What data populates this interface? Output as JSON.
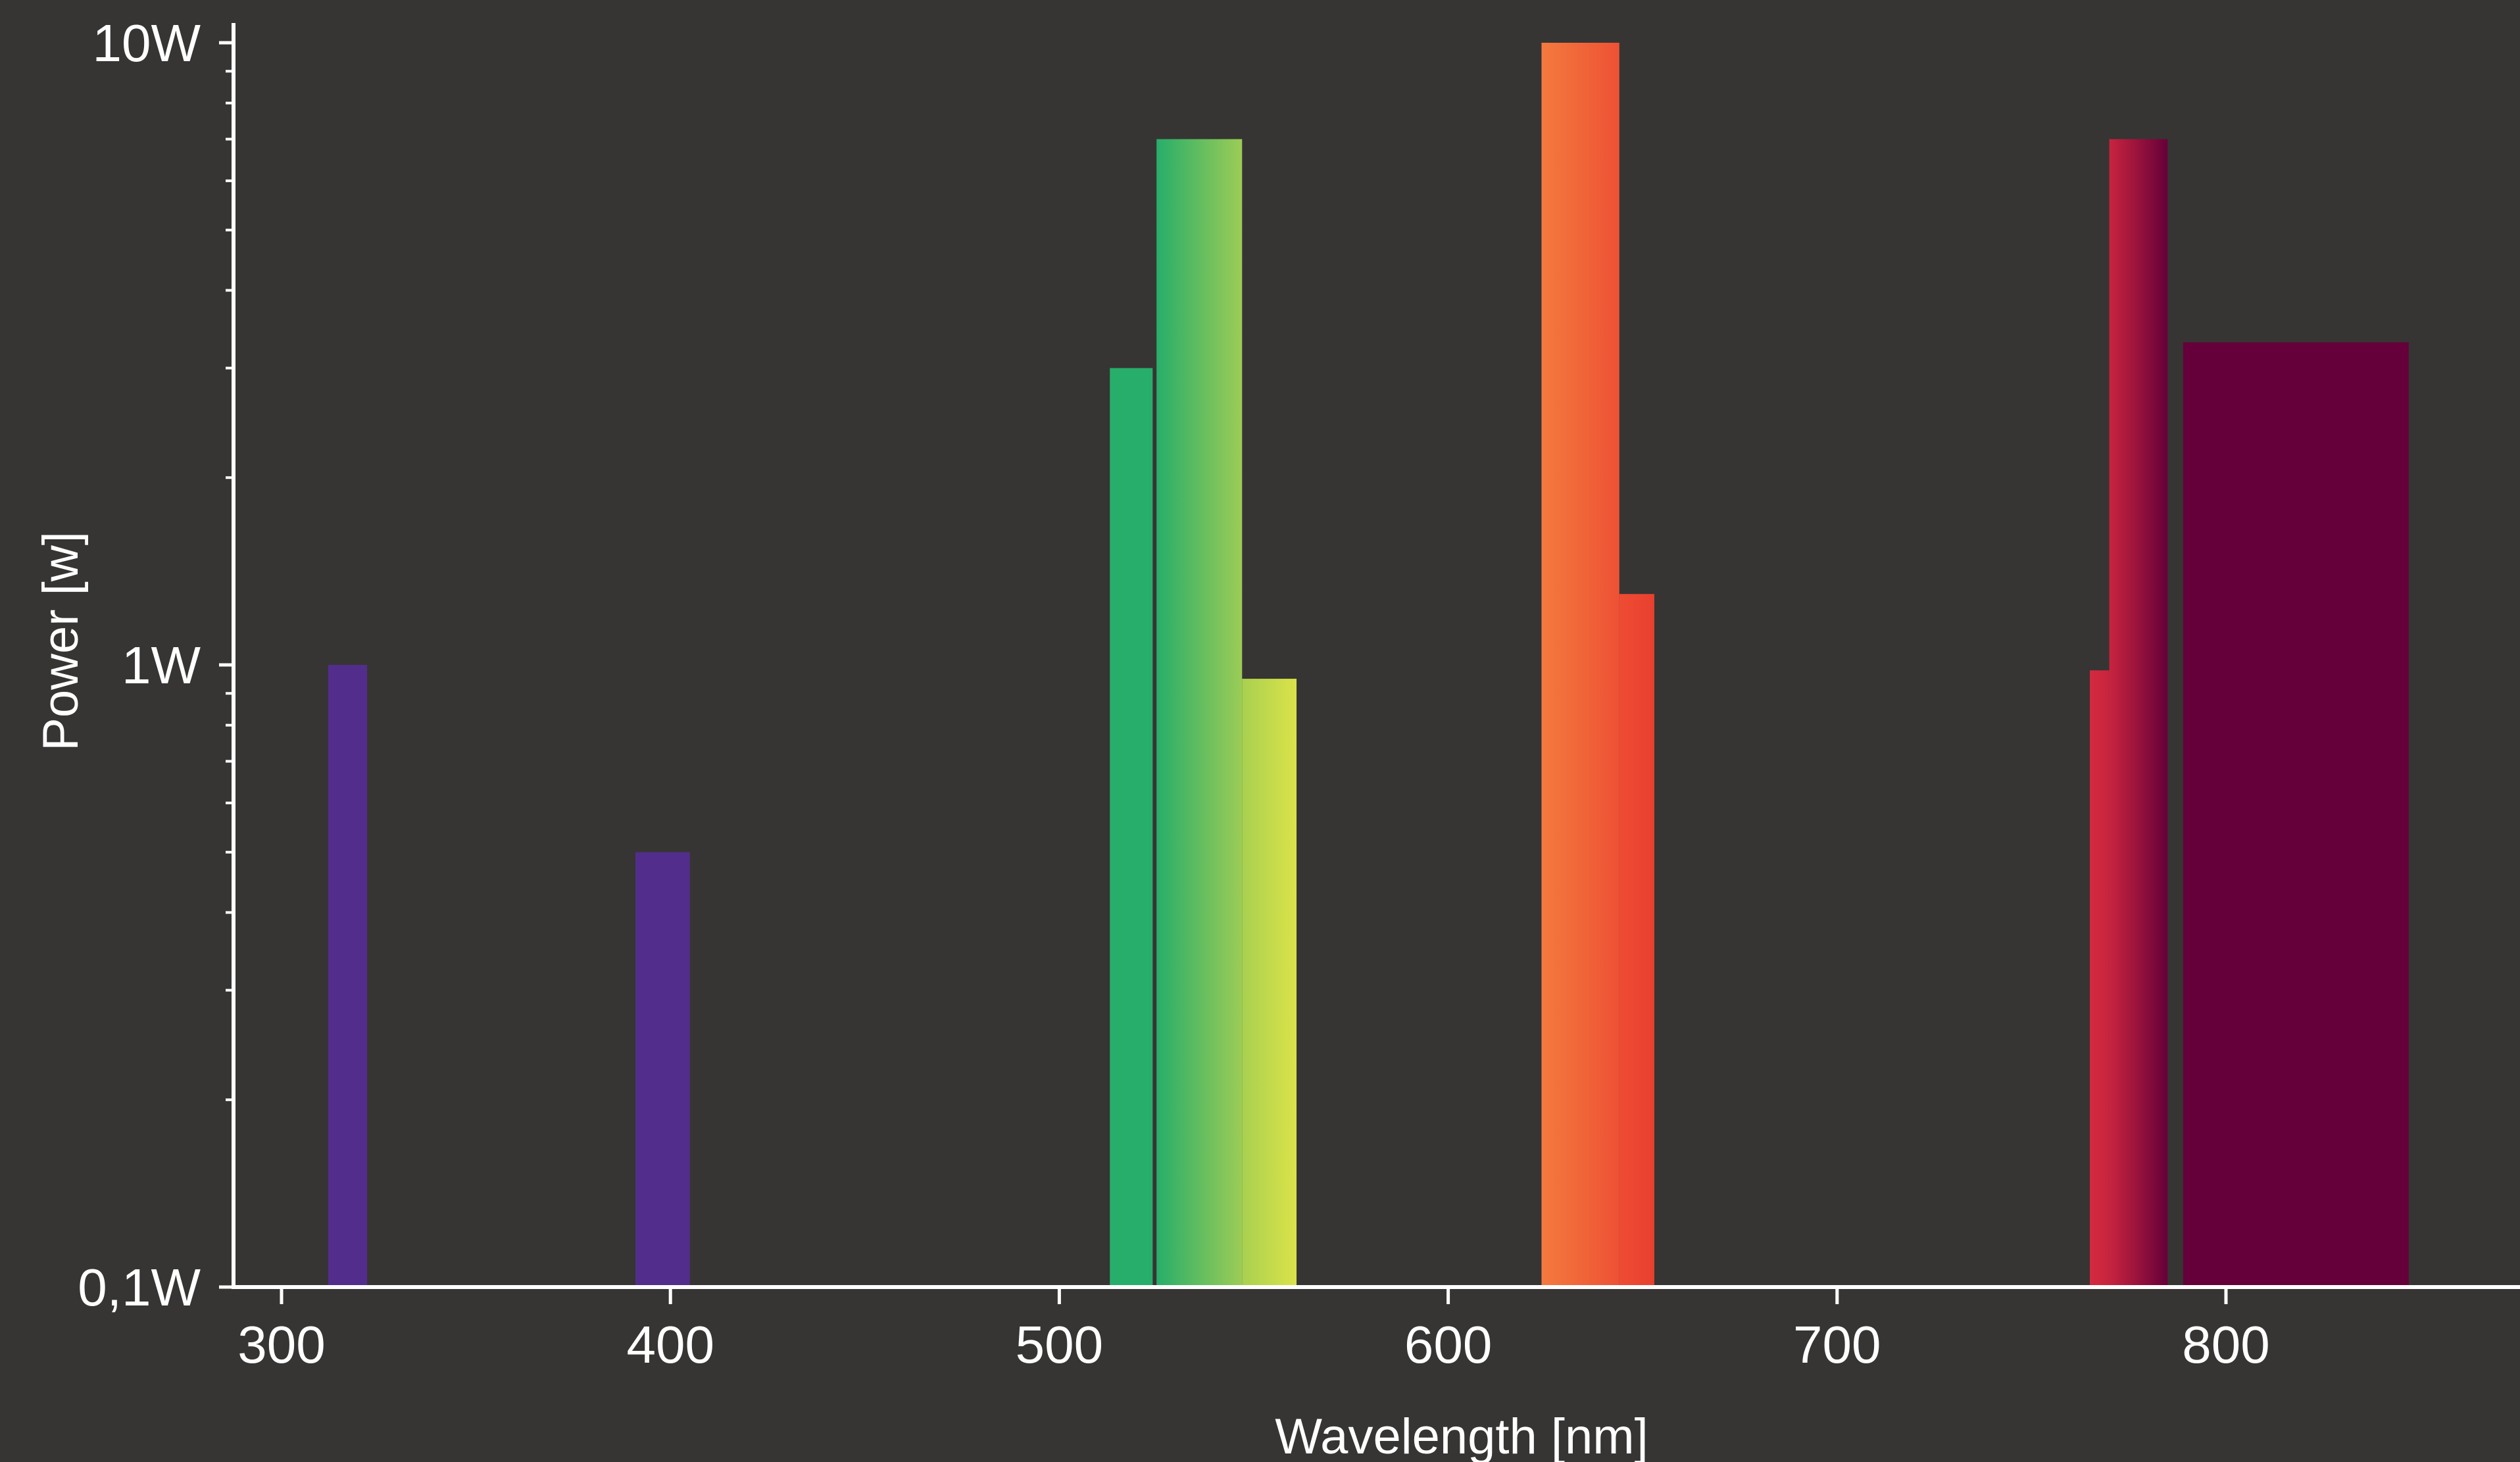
{
  "chart_data": {
    "type": "bar",
    "title": "",
    "xlabel": "Wavelength [nm]",
    "ylabel": "Power [w]",
    "x_scale": "linear",
    "y_scale": "log",
    "xlim": [
      288,
      880
    ],
    "ylim": [
      0.1,
      10
    ],
    "x_ticks": [
      300,
      400,
      500,
      600,
      700,
      800
    ],
    "x_tick_labels": [
      "300",
      "400",
      "500",
      "600",
      "700",
      "800"
    ],
    "y_ticks": [
      0.1,
      1,
      10
    ],
    "y_tick_labels": [
      "0,1W",
      "1W",
      "10W"
    ],
    "grid": false,
    "legend": "none",
    "colors": {
      "background": "#363533",
      "axis": "#ffffff",
      "text": "#ffffff"
    },
    "bars": [
      {
        "x0": 312,
        "x1": 322,
        "value": 1.0,
        "color_start": "#522d8c",
        "color_end": "#522d8c"
      },
      {
        "x0": 391,
        "x1": 405,
        "value": 0.5,
        "color_start": "#522d8c",
        "color_end": "#522d8c"
      },
      {
        "x0": 513,
        "x1": 524,
        "value": 3.0,
        "color_start": "#27ae6a",
        "color_end": "#27ae6a"
      },
      {
        "x0": 525,
        "x1": 547,
        "value": 7.0,
        "color_start": "#27ae6a",
        "color_end": "#9ccc56"
      },
      {
        "x0": 547,
        "x1": 561,
        "value": 0.95,
        "color_start": "#a8d050",
        "color_end": "#dbe349"
      },
      {
        "x0": 624,
        "x1": 644,
        "value": 10.0,
        "color_start": "#f47a3e",
        "color_end": "#ee5134"
      },
      {
        "x0": 644,
        "x1": 653,
        "value": 1.3,
        "color_start": "#ef4c34",
        "color_end": "#e8402f"
      },
      {
        "x0": 765,
        "x1": 770,
        "value": 0.98,
        "color_start": "#d42a3e",
        "color_end": "#c8243e"
      },
      {
        "x0": 770,
        "x1": 785,
        "value": 7.0,
        "color_start": "#c8243e",
        "color_end": "#66003a"
      },
      {
        "x0": 789,
        "x1": 847,
        "value": 3.3,
        "color_start": "#66003a",
        "color_end": "#66003a"
      }
    ]
  }
}
